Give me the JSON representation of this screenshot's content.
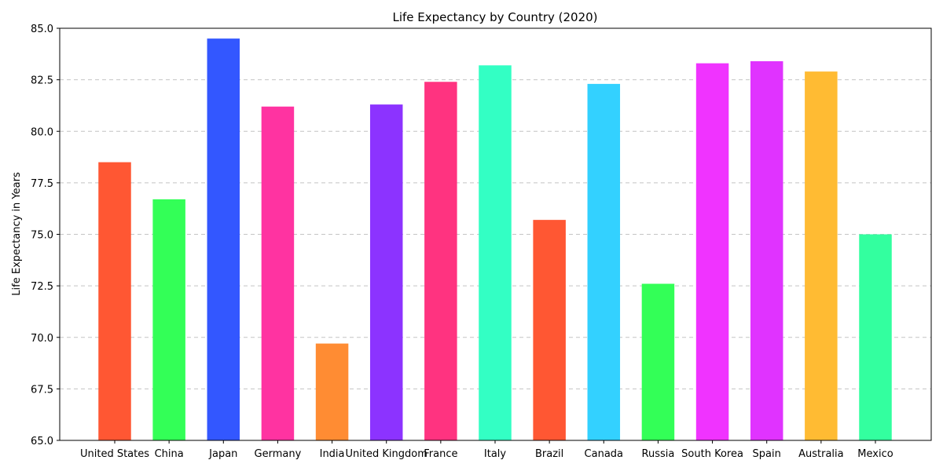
{
  "chart_data": {
    "type": "bar",
    "title": "Life Expectancy by Country (2020)",
    "xlabel": "",
    "ylabel": "Life Expectancy in Years",
    "ylim": [
      65.0,
      85.0
    ],
    "yticks": [
      "65.0",
      "67.5",
      "70.0",
      "72.5",
      "75.0",
      "77.5",
      "80.0",
      "82.5",
      "85.0"
    ],
    "grid": "y-dashed",
    "categories": [
      "United States",
      "China",
      "Japan",
      "Germany",
      "India",
      "United Kingdom",
      "France",
      "Italy",
      "Brazil",
      "Canada",
      "Russia",
      "South Korea",
      "Spain",
      "Australia",
      "Mexico"
    ],
    "values": [
      78.5,
      76.7,
      84.5,
      81.2,
      69.7,
      81.3,
      82.4,
      83.2,
      75.7,
      82.3,
      72.6,
      83.3,
      83.4,
      82.9,
      75.0
    ],
    "colors": [
      "#ff5733",
      "#33ff57",
      "#3357ff",
      "#ff33a1",
      "#ff8c33",
      "#8c33ff",
      "#ff3380",
      "#33ffc4",
      "#ff5733",
      "#33d1ff",
      "#33ff57",
      "#f033ff",
      "#e033ff",
      "#ffbb33",
      "#33ff9f"
    ]
  }
}
